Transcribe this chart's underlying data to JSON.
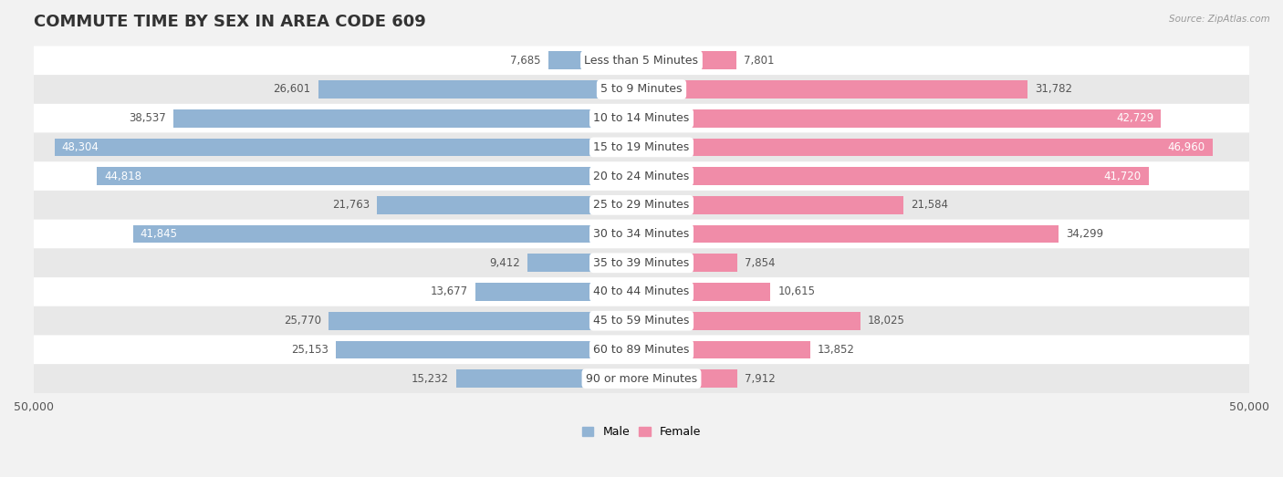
{
  "title": "COMMUTE TIME BY SEX IN AREA CODE 609",
  "source": "Source: ZipAtlas.com",
  "categories": [
    "Less than 5 Minutes",
    "5 to 9 Minutes",
    "10 to 14 Minutes",
    "15 to 19 Minutes",
    "20 to 24 Minutes",
    "25 to 29 Minutes",
    "30 to 34 Minutes",
    "35 to 39 Minutes",
    "40 to 44 Minutes",
    "45 to 59 Minutes",
    "60 to 89 Minutes",
    "90 or more Minutes"
  ],
  "male_values": [
    7685,
    26601,
    38537,
    48304,
    44818,
    21763,
    41845,
    9412,
    13677,
    25770,
    25153,
    15232
  ],
  "female_values": [
    7801,
    31782,
    42729,
    46960,
    41720,
    21584,
    34299,
    7854,
    10615,
    18025,
    13852,
    7912
  ],
  "male_color": "#92b4d4",
  "female_color": "#f08ca8",
  "background_color": "#f2f2f2",
  "row_white": "#ffffff",
  "row_gray": "#e8e8e8",
  "xlim": 50000,
  "bar_height": 0.62,
  "title_fontsize": 13,
  "label_fontsize": 8.5,
  "axis_label_fontsize": 9,
  "category_fontsize": 9
}
